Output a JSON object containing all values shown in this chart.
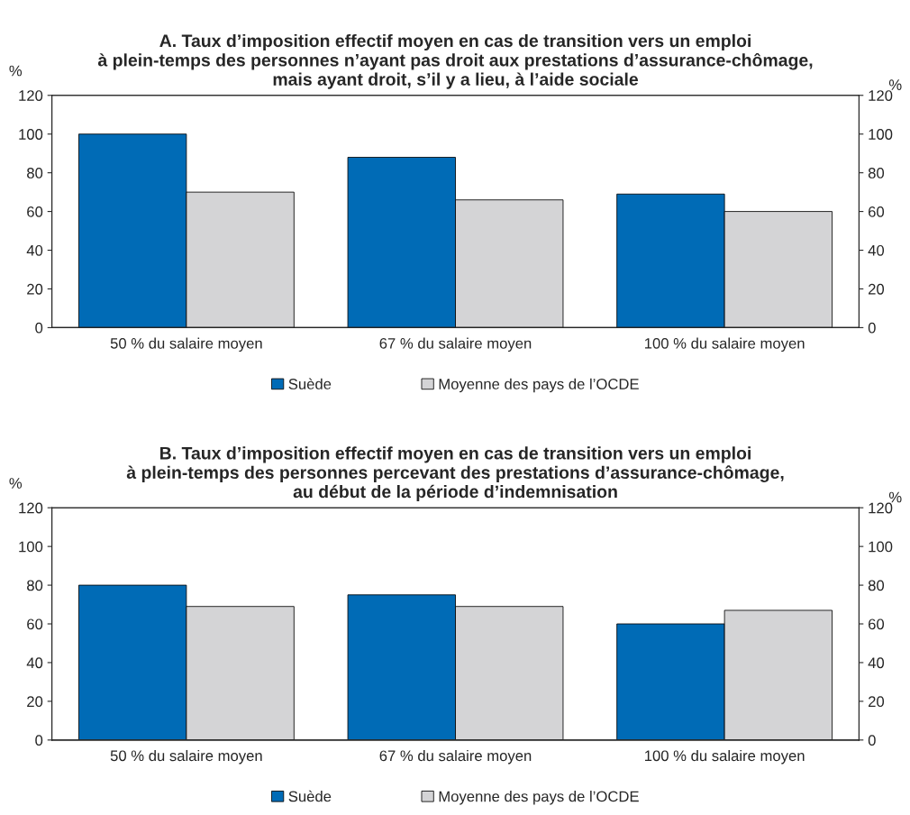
{
  "chart_data": [
    {
      "type": "bar",
      "title": "A. Taux d’imposition effectif moyen en cas de transition vers un emploi\nà plein-temps des personnes n’ayant pas droit aux prestations d’assurance-chômage,\nmais ayant droit, s’il y a lieu, à l’aide sociale",
      "ylabel": "%",
      "y2label": "%",
      "categories": [
        "50 % du salaire moyen",
        "67 % du salaire moyen",
        "100 % du salaire moyen"
      ],
      "series": [
        {
          "name": "Suède",
          "color": "#006bb6",
          "values": [
            100,
            88,
            69
          ]
        },
        {
          "name": "Moyenne des pays de l’OCDE",
          "color": "#d4d4d6",
          "values": [
            70,
            66,
            60
          ]
        }
      ],
      "ylim": [
        0,
        120
      ],
      "yticks": [
        0,
        20,
        40,
        60,
        80,
        100,
        120
      ],
      "y2lim": [
        0,
        120
      ],
      "y2ticks": [
        0,
        20,
        40,
        60,
        80,
        100,
        120
      ],
      "grid": false,
      "legend": "bottom"
    },
    {
      "type": "bar",
      "title": "B. Taux d’imposition effectif moyen en cas de transition vers un emploi\nà plein-temps des personnes percevant des prestations d’assurance-chômage,\nau début de la période d’indemnisation",
      "ylabel": "%",
      "y2label": "%",
      "categories": [
        "50 % du salaire moyen",
        "67 % du salaire moyen",
        "100 % du salaire moyen"
      ],
      "series": [
        {
          "name": "Suède",
          "color": "#006bb6",
          "values": [
            80,
            75,
            60
          ]
        },
        {
          "name": "Moyenne des pays de l’OCDE",
          "color": "#d4d4d6",
          "values": [
            69,
            69,
            67
          ]
        }
      ],
      "ylim": [
        0,
        120
      ],
      "yticks": [
        0,
        20,
        40,
        60,
        80,
        100,
        120
      ],
      "y2lim": [
        0,
        120
      ],
      "y2ticks": [
        0,
        20,
        40,
        60,
        80,
        100,
        120
      ],
      "grid": false,
      "legend": "bottom"
    }
  ]
}
